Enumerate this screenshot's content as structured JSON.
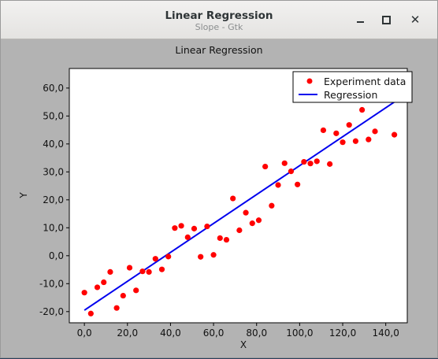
{
  "window": {
    "title": "Linear Regression",
    "subtitle": "Slope - Gtk",
    "minimize_icon": "minimize-icon",
    "maximize_icon": "maximize-icon",
    "close_icon": "close-icon"
  },
  "chart_data": {
    "type": "scatter",
    "title": "Linear Regression",
    "xlabel": "X",
    "ylabel": "Y",
    "xlim": [
      -7,
      150
    ],
    "ylim": [
      -24,
      67
    ],
    "x_ticks": [
      "0,0",
      "20,0",
      "40,0",
      "60,0",
      "80,0",
      "100,0",
      "120,0",
      "140,0"
    ],
    "x_tick_values": [
      0,
      20,
      40,
      60,
      80,
      100,
      120,
      140
    ],
    "y_ticks": [
      "-20,0",
      "-10,0",
      "0,0",
      "10,0",
      "20,0",
      "30,0",
      "40,0",
      "50,0",
      "60,0"
    ],
    "y_tick_values": [
      -20,
      -10,
      0,
      10,
      20,
      30,
      40,
      50,
      60
    ],
    "legend_position": "top-right",
    "series": [
      {
        "name": "Experiment data",
        "kind": "scatter",
        "color": "#ff0000",
        "points": [
          [
            0,
            -13.2
          ],
          [
            3,
            -20.7
          ],
          [
            6,
            -11.3
          ],
          [
            9,
            -9.5
          ],
          [
            12,
            -5.8
          ],
          [
            15,
            -18.7
          ],
          [
            18,
            -14.3
          ],
          [
            21,
            -4.3
          ],
          [
            24,
            -12.4
          ],
          [
            27,
            -5.6
          ],
          [
            30,
            -5.8
          ],
          [
            33,
            -1.1
          ],
          [
            36,
            -4.9
          ],
          [
            39,
            -0.3
          ],
          [
            42,
            9.9
          ],
          [
            45,
            10.7
          ],
          [
            48,
            6.6
          ],
          [
            51,
            9.7
          ],
          [
            54,
            -0.4
          ],
          [
            57,
            10.5
          ],
          [
            60,
            0.3
          ],
          [
            63,
            6.3
          ],
          [
            66,
            5.7
          ],
          [
            69,
            20.5
          ],
          [
            72,
            9.1
          ],
          [
            75,
            15.4
          ],
          [
            78,
            11.6
          ],
          [
            81,
            12.7
          ],
          [
            84,
            31.9
          ],
          [
            87,
            17.9
          ],
          [
            90,
            25.3
          ],
          [
            93,
            33.1
          ],
          [
            96,
            30.2
          ],
          [
            99,
            25.5
          ],
          [
            102,
            33.6
          ],
          [
            105,
            33.0
          ],
          [
            108,
            33.8
          ],
          [
            111,
            44.9
          ],
          [
            114,
            32.8
          ],
          [
            117,
            43.8
          ],
          [
            120,
            40.6
          ],
          [
            123,
            46.8
          ],
          [
            126,
            41.0
          ],
          [
            129,
            52.2
          ],
          [
            132,
            41.6
          ],
          [
            135,
            44.5
          ],
          [
            144,
            43.3
          ]
        ]
      },
      {
        "name": "Regression",
        "kind": "line",
        "color": "#0000ee",
        "points": [
          [
            0,
            -19.5
          ],
          [
            144,
            55.0
          ]
        ]
      }
    ]
  }
}
